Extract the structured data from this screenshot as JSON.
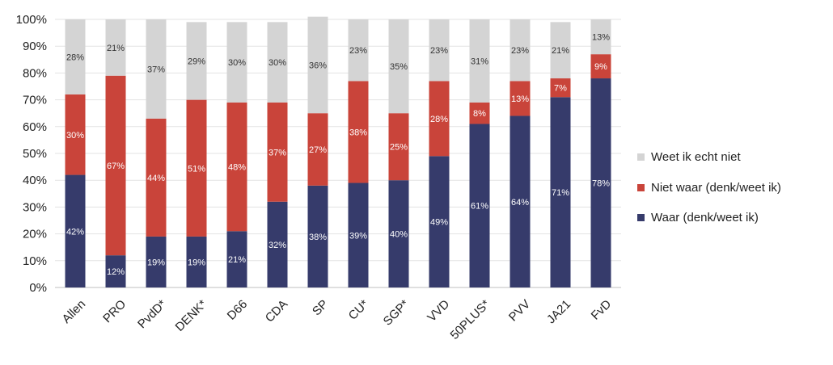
{
  "chart_data": {
    "type": "bar",
    "stacked": true,
    "categories": [
      "Allen",
      "PRO",
      "PvdD*",
      "DENK*",
      "D66",
      "CDA",
      "SP",
      "CU*",
      "SGP*",
      "VVD",
      "50PLUS*",
      "PVV",
      "JA21",
      "FvD"
    ],
    "series": [
      {
        "name": "Waar (denk/weet ik)",
        "color": "#363b6b",
        "values": [
          42,
          12,
          19,
          19,
          21,
          32,
          38,
          39,
          40,
          49,
          61,
          64,
          71,
          78
        ],
        "labels": [
          "42%",
          "12%",
          "19%",
          "19%",
          "21%",
          "32%",
          "38%",
          "39%",
          "40%",
          "49%",
          "61%",
          "64%",
          "71%",
          "78%"
        ]
      },
      {
        "name": "Niet waar (denk/weet ik)",
        "color": "#c9443a",
        "values": [
          30,
          67,
          44,
          51,
          48,
          37,
          27,
          38,
          25,
          28,
          8,
          13,
          7,
          9
        ],
        "labels": [
          "30%",
          "67%",
          "44%",
          "51%",
          "48%",
          "37%",
          "27%",
          "38%",
          "25%",
          "28%",
          "8%",
          "13%",
          "7%",
          "9%"
        ]
      },
      {
        "name": "Weet ik echt niet",
        "color": "#d4d4d4",
        "values": [
          28,
          21,
          37,
          29,
          30,
          30,
          36,
          23,
          35,
          23,
          31,
          23,
          21,
          13
        ],
        "labels": [
          "28%",
          "21%",
          "37%",
          "29%",
          "30%",
          "30%",
          "36%",
          "23%",
          "35%",
          "23%",
          "31%",
          "23%",
          "21%",
          "13%"
        ]
      }
    ],
    "yticks": [
      "0%",
      "10%",
      "20%",
      "30%",
      "40%",
      "50%",
      "60%",
      "70%",
      "80%",
      "90%",
      "100%"
    ],
    "ylim": [
      0,
      100
    ],
    "grid": true,
    "legend": "right"
  },
  "legend": {
    "items": [
      {
        "label": "Weet ik echt niet",
        "color": "#d4d4d4"
      },
      {
        "label": "Niet waar (denk/weet ik)",
        "color": "#c9443a"
      },
      {
        "label": "Waar (denk/weet ik)",
        "color": "#363b6b"
      }
    ]
  }
}
